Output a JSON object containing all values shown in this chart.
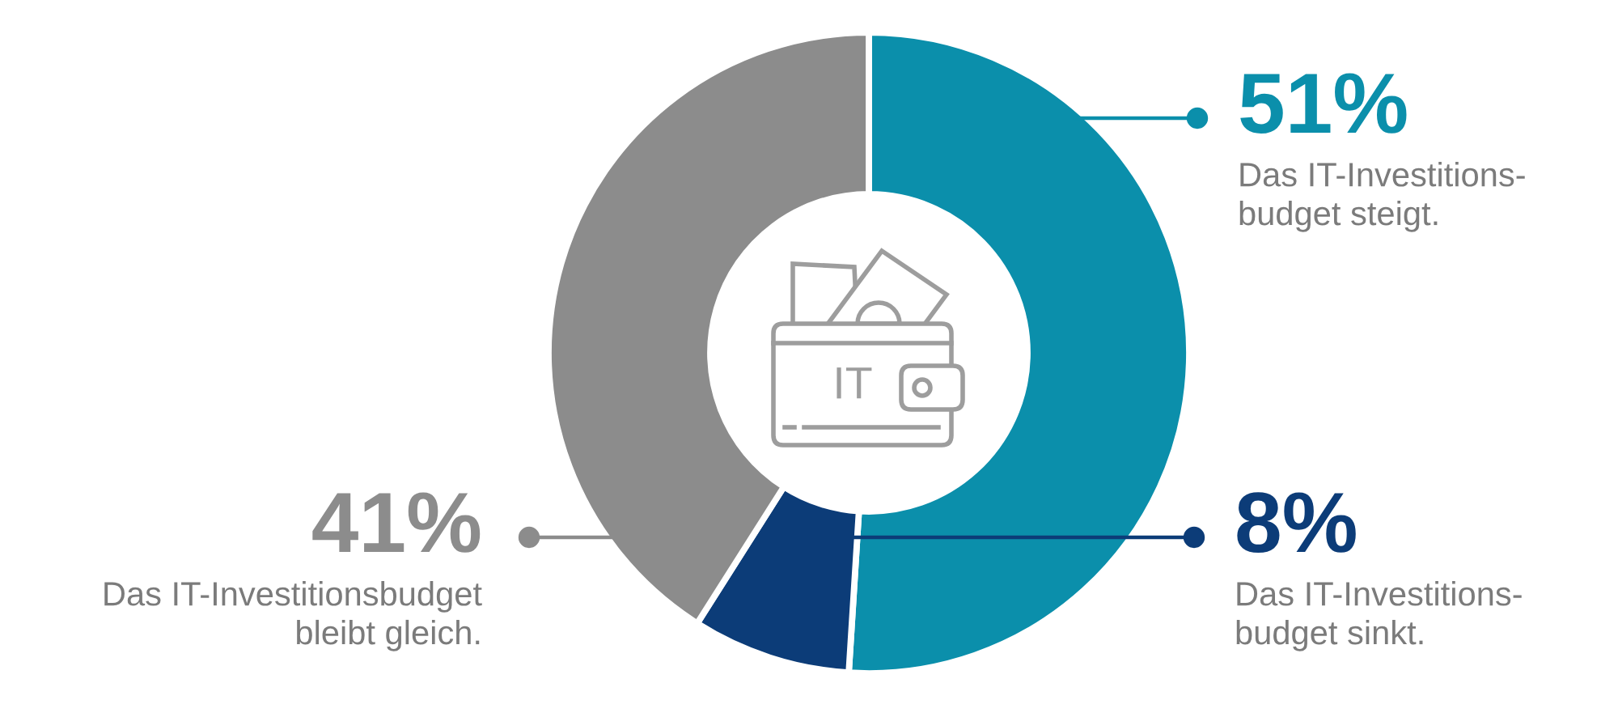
{
  "chart_data": {
    "type": "donut",
    "categories": [
      "Das IT-Investitions-\nbudget steigt.",
      "Das IT-Investitions-\nbudget sinkt.",
      "Das IT-Investitionsbudget\nbleibt gleich."
    ],
    "values": [
      51,
      8,
      41
    ],
    "colors": [
      "#0b8fab",
      "#0c3c78",
      "#8c8c8c"
    ],
    "value_labels": [
      "51%",
      "8%",
      "41%"
    ],
    "annotations": [
      "IT"
    ]
  }
}
